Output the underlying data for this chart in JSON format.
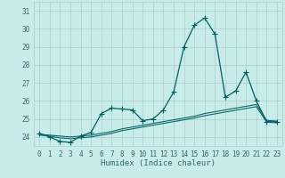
{
  "xlabel": "Humidex (Indice chaleur)",
  "background_color": "#c8ecea",
  "grid_color": "#b0cccb",
  "line_color": "#006060",
  "xlim": [
    -0.5,
    23.5
  ],
  "ylim": [
    23.5,
    31.5
  ],
  "yticks": [
    24,
    25,
    26,
    27,
    28,
    29,
    30,
    31
  ],
  "xticks": [
    0,
    1,
    2,
    3,
    4,
    5,
    6,
    7,
    8,
    9,
    10,
    11,
    12,
    13,
    14,
    15,
    16,
    17,
    18,
    19,
    20,
    21,
    22,
    23
  ],
  "line1_x": [
    0,
    1,
    2,
    3,
    4,
    5,
    6,
    7,
    8,
    9,
    10,
    11,
    12,
    13,
    14,
    15,
    16,
    17,
    18,
    19,
    20,
    21,
    22,
    23
  ],
  "line1_y": [
    24.2,
    24.0,
    23.75,
    23.7,
    24.05,
    24.25,
    25.3,
    25.6,
    25.55,
    25.5,
    24.9,
    25.0,
    25.5,
    26.5,
    29.0,
    30.2,
    30.6,
    29.7,
    26.2,
    26.55,
    27.6,
    26.0,
    24.85,
    24.85
  ],
  "line2_x": [
    0,
    1,
    2,
    3,
    4,
    5,
    6,
    7,
    8,
    9,
    10,
    11,
    12,
    13,
    14,
    15,
    16,
    17,
    18,
    19,
    20,
    21,
    22,
    23
  ],
  "line2_y": [
    24.15,
    24.1,
    24.05,
    24.0,
    24.05,
    24.1,
    24.2,
    24.3,
    24.45,
    24.55,
    24.65,
    24.75,
    24.85,
    24.95,
    25.05,
    25.15,
    25.3,
    25.4,
    25.5,
    25.6,
    25.7,
    25.8,
    24.92,
    24.88
  ],
  "line3_x": [
    0,
    1,
    2,
    3,
    4,
    5,
    6,
    7,
    8,
    9,
    10,
    11,
    12,
    13,
    14,
    15,
    16,
    17,
    18,
    19,
    20,
    21,
    22,
    23
  ],
  "line3_y": [
    24.1,
    24.05,
    23.95,
    23.9,
    23.95,
    24.0,
    24.1,
    24.2,
    24.35,
    24.45,
    24.55,
    24.65,
    24.75,
    24.85,
    24.95,
    25.05,
    25.18,
    25.28,
    25.38,
    25.48,
    25.58,
    25.68,
    24.82,
    24.78
  ],
  "font_color": "#336666",
  "font_size_tick": 5.5,
  "font_size_label": 6.5,
  "marker": "+",
  "markersize": 4,
  "linewidth_main": 0.9,
  "linewidth_trend": 0.75
}
